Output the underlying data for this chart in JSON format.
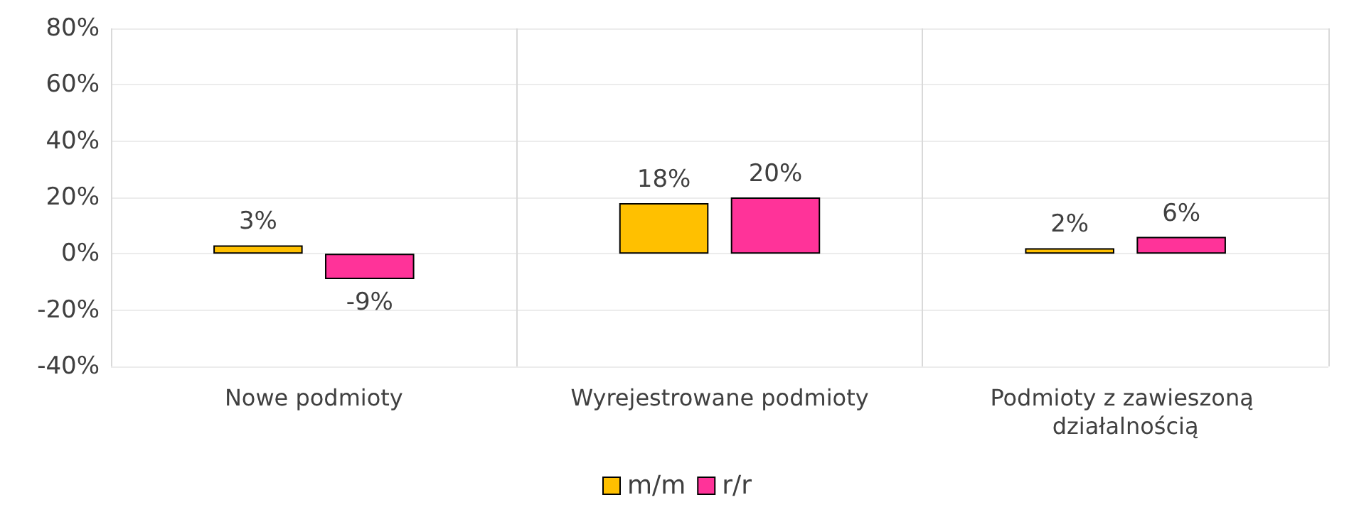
{
  "chart_data": {
    "type": "bar",
    "categories": [
      "Nowe podmioty",
      "Wyrejestrowane podmioty",
      "Podmioty z zawieszoną działalnością"
    ],
    "series": [
      {
        "name": "m/m",
        "color": "#ffc000",
        "values": [
          3,
          18,
          2
        ],
        "value_labels": [
          "3%",
          "18%",
          "2%"
        ]
      },
      {
        "name": "r/r",
        "color": "#ff3399",
        "values": [
          -9,
          20,
          6
        ],
        "value_labels": [
          "-9%",
          "20%",
          "6%"
        ]
      }
    ],
    "ylim": [
      -40,
      80
    ],
    "yticks": [
      {
        "value": -40,
        "label": "-40%"
      },
      {
        "value": -20,
        "label": "-20%"
      },
      {
        "value": 0,
        "label": "0%"
      },
      {
        "value": 20,
        "label": "20%"
      },
      {
        "value": 40,
        "label": "40%"
      },
      {
        "value": 60,
        "label": "60%"
      },
      {
        "value": 80,
        "label": "80%"
      }
    ],
    "grid": true,
    "legend": "bottom"
  }
}
